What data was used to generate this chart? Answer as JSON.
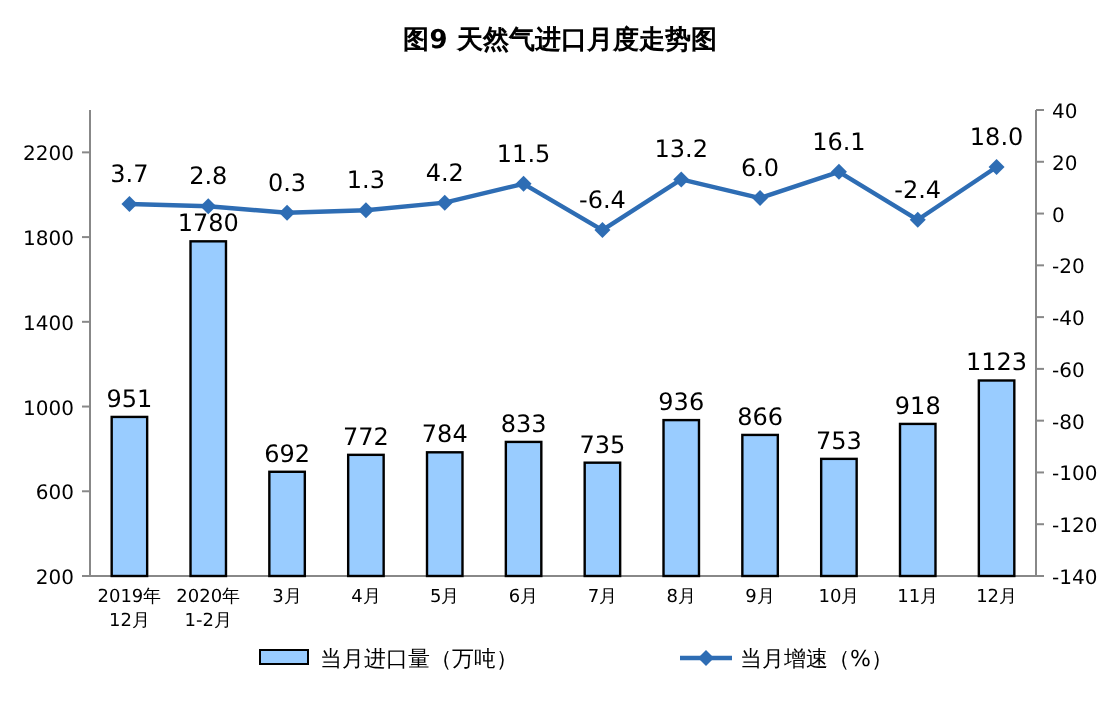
{
  "chart_data": {
    "type": "bar",
    "title": "图9  天然气进口月度走势图",
    "categories": [
      "2019年\n12月",
      "2020年\n1-2月",
      "3月",
      "4月",
      "5月",
      "6月",
      "7月",
      "8月",
      "9月",
      "10月",
      "11月",
      "12月"
    ],
    "series": [
      {
        "name": "当月进口量（万吨）",
        "color": "#99ccff",
        "values": [
          951,
          1780,
          692,
          772,
          784,
          833,
          735,
          936,
          866,
          753,
          918,
          1123
        ]
      },
      {
        "name": "当月增速（%）",
        "type": "line",
        "axis": "y2",
        "color": "#2e6db4",
        "marker": "diamond",
        "values": [
          3.7,
          2.8,
          0.3,
          1.3,
          4.2,
          11.5,
          -6.4,
          13.2,
          6.0,
          16.1,
          -2.4,
          18.0
        ],
        "value_labels": [
          "3.7",
          "2.8",
          "0.3",
          "1.3",
          "4.2",
          "11.5",
          "-6.4",
          "13.2",
          "6.0",
          "16.1",
          "-2.4",
          "18.0"
        ]
      }
    ],
    "data_labels": true,
    "ylim": [
      200,
      2400
    ],
    "yticks": [
      200,
      600,
      1000,
      1400,
      1800,
      2200
    ],
    "y2lim": [
      -140,
      40
    ],
    "y2ticks": [
      -140,
      -120,
      -100,
      -80,
      -60,
      -40,
      -20,
      0,
      20,
      40
    ],
    "grid": false,
    "legend": "bottom"
  }
}
